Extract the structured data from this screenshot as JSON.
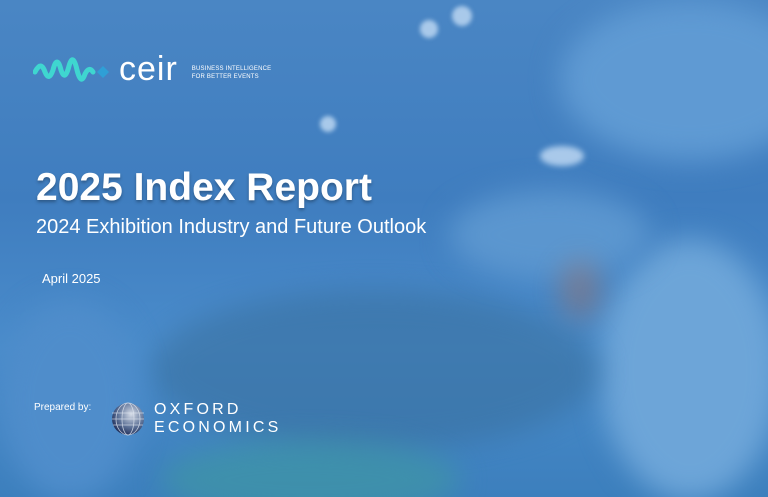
{
  "header": {
    "logo_text": "ceir",
    "tagline_line1": "BUSINESS INTELLIGENCE",
    "tagline_line2": "FOR BETTER EVENTS"
  },
  "cover": {
    "title": "2025 Index Report",
    "subtitle": "2024 Exhibition Industry and Future Outlook",
    "date": "April 2025"
  },
  "footer": {
    "prepared_by_label": "Prepared by:",
    "partner_line1": "OXFORD",
    "partner_line2": "ECONOMICS"
  },
  "colors": {
    "background": "#4282c2",
    "logo_accent": "#3fd6d0",
    "text": "#ffffff"
  }
}
